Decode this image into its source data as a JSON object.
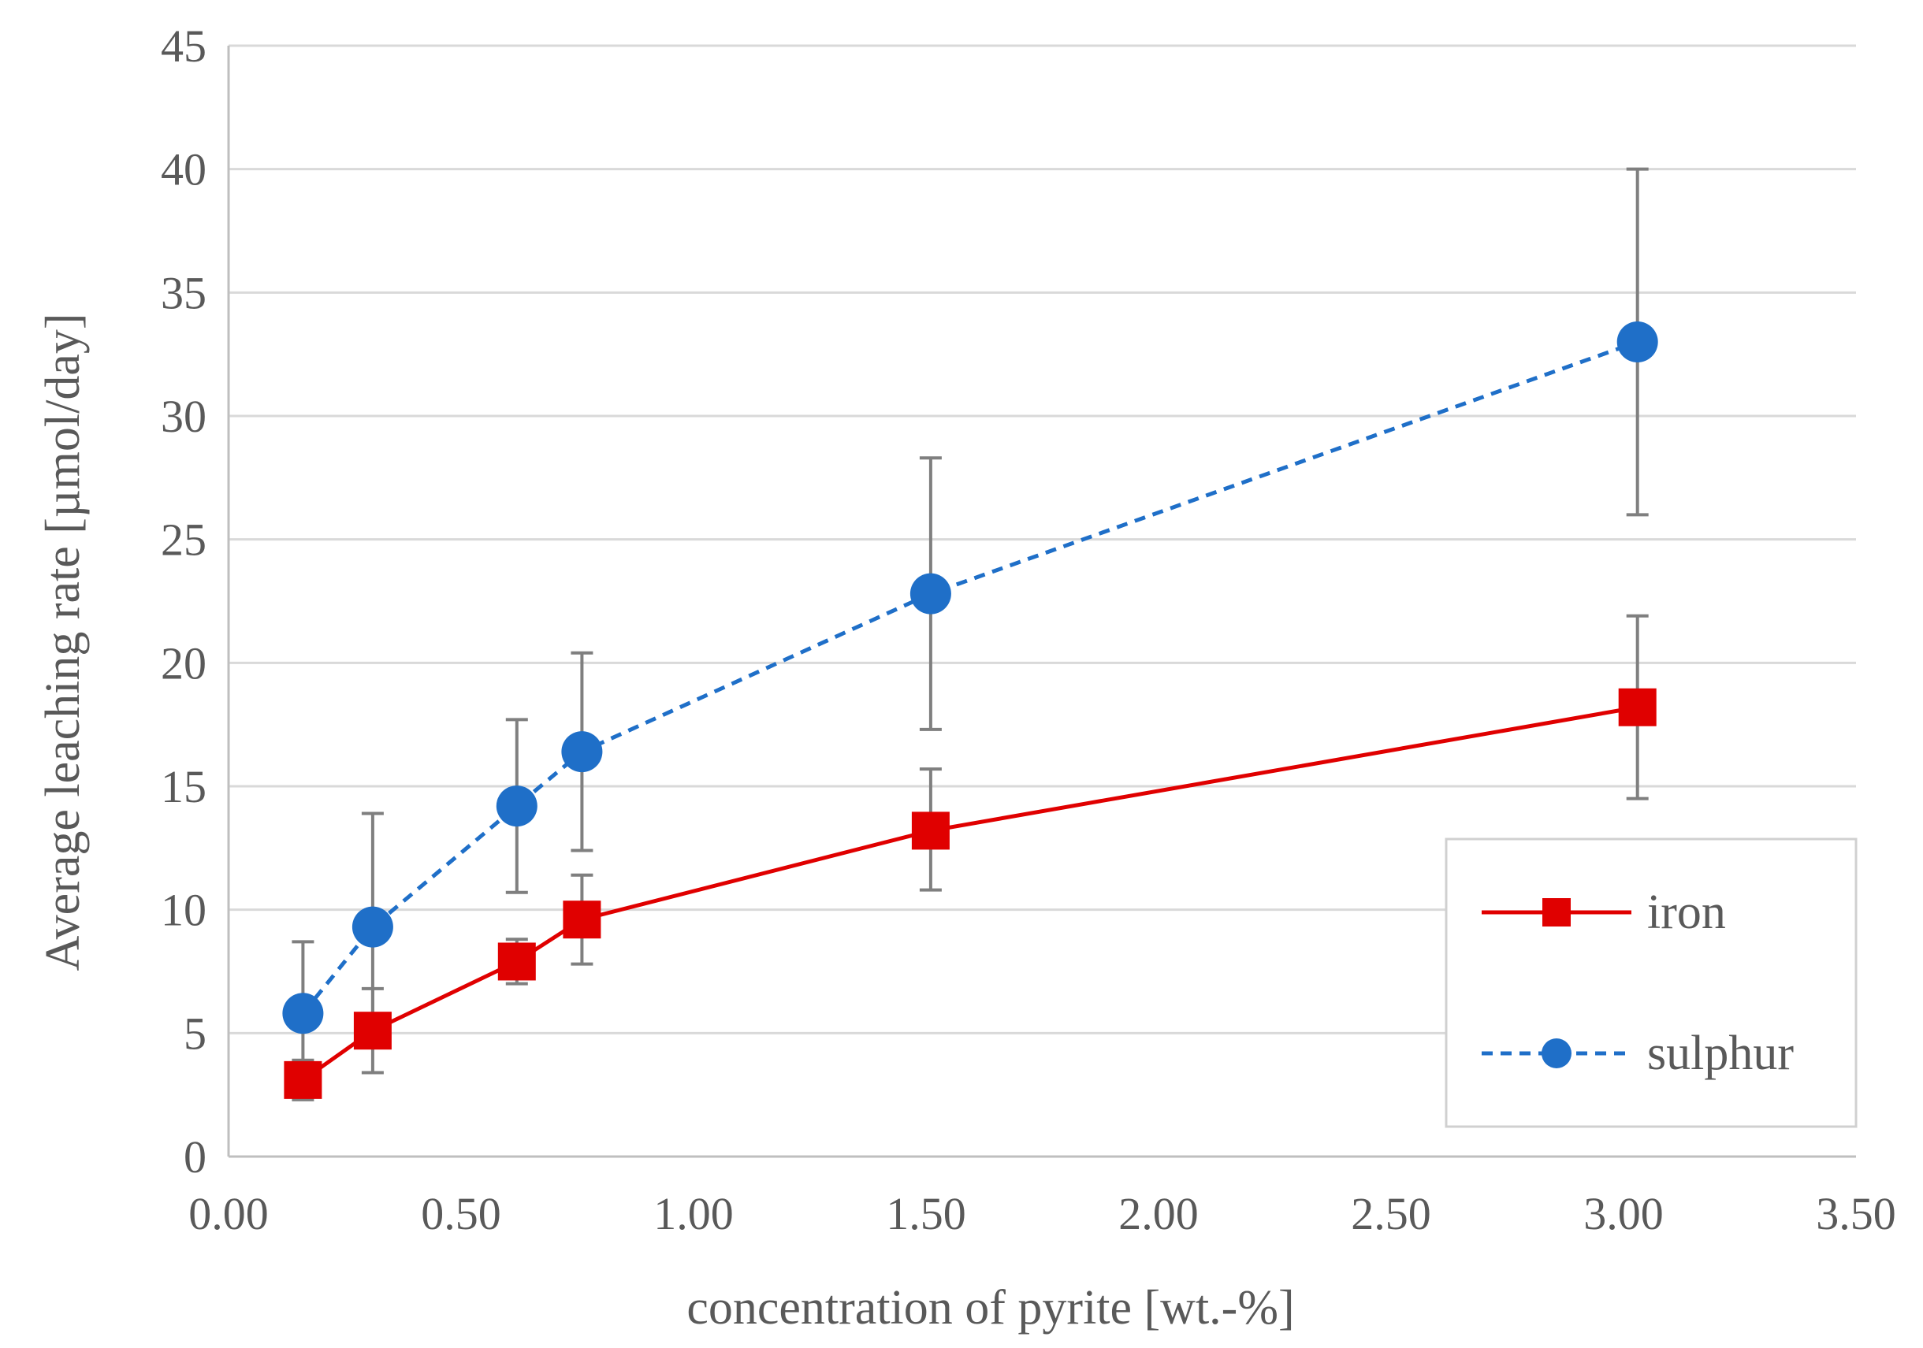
{
  "chart_data": {
    "type": "line",
    "title": "",
    "xlabel": "concentration of pyrite [wt.-%]",
    "ylabel": "Average leaching rate [µmol/day]",
    "xlim": [
      0.0,
      3.5
    ],
    "ylim": [
      0,
      45
    ],
    "xticks": [
      0.0,
      0.5,
      1.0,
      1.5,
      2.0,
      2.5,
      3.0,
      3.5
    ],
    "xtick_labels": [
      "0.00",
      "0.50",
      "1.00",
      "1.50",
      "2.00",
      "2.50",
      "3.00",
      "3.50"
    ],
    "yticks": [
      0,
      5,
      10,
      15,
      20,
      25,
      30,
      35,
      40,
      45
    ],
    "ytick_labels": [
      "0",
      "5",
      "10",
      "15",
      "20",
      "25",
      "30",
      "35",
      "40",
      "45"
    ],
    "grid": true,
    "legend_position": "bottom-right",
    "series": [
      {
        "name": "iron",
        "color": "#e00000",
        "line_style": "solid",
        "marker": "square",
        "x": [
          0.16,
          0.31,
          0.62,
          0.76,
          1.51,
          3.03
        ],
        "y": [
          3.1,
          5.1,
          7.9,
          9.6,
          13.2,
          18.2
        ],
        "err_low": [
          2.3,
          3.4,
          7.0,
          7.8,
          10.8,
          14.5
        ],
        "err_high": [
          3.9,
          6.8,
          8.8,
          11.4,
          15.7,
          21.9
        ]
      },
      {
        "name": "sulphur",
        "color": "#1f6fc8",
        "line_style": "dashed",
        "marker": "circle",
        "x": [
          0.16,
          0.31,
          0.62,
          0.76,
          1.51,
          3.03
        ],
        "y": [
          5.8,
          9.3,
          14.2,
          16.4,
          22.8,
          33.0
        ],
        "err_low": [
          2.9,
          4.7,
          10.7,
          12.4,
          17.3,
          26.0
        ],
        "err_high": [
          8.7,
          13.9,
          17.7,
          20.4,
          28.3,
          40.0
        ]
      }
    ]
  }
}
